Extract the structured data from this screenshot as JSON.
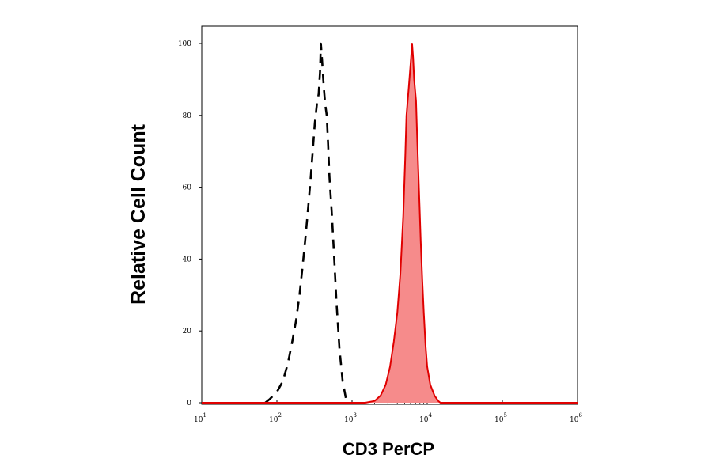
{
  "chart_data": {
    "type": "area",
    "xlabel": "CD3 PerCP",
    "ylabel": "Relative Cell Count",
    "x_scale": "log",
    "xlim": [
      10,
      1000000
    ],
    "ylim": [
      0,
      105
    ],
    "grid": false,
    "y_ticks": [
      {
        "value": 0,
        "label": "0"
      },
      {
        "value": 20,
        "label": "20"
      },
      {
        "value": 40,
        "label": "40"
      },
      {
        "value": 60,
        "label": "60"
      },
      {
        "value": 80,
        "label": "80"
      },
      {
        "value": 100,
        "label": "100"
      }
    ],
    "x_ticks": [
      {
        "value": 10,
        "base": "10",
        "exp": "1"
      },
      {
        "value": 100,
        "base": "10",
        "exp": "2"
      },
      {
        "value": 1000,
        "base": "10",
        "exp": "3"
      },
      {
        "value": 10000,
        "base": "10",
        "exp": "4"
      },
      {
        "value": 100000,
        "base": "10",
        "exp": "5"
      },
      {
        "value": 1000000,
        "base": "10",
        "exp": "6"
      }
    ],
    "series": [
      {
        "style": "dashed",
        "color": "#000000",
        "points": [
          [
            70,
            0
          ],
          [
            80,
            1
          ],
          [
            100,
            3
          ],
          [
            120,
            6
          ],
          [
            140,
            11
          ],
          [
            160,
            17
          ],
          [
            180,
            23
          ],
          [
            200,
            30
          ],
          [
            220,
            38
          ],
          [
            240,
            46
          ],
          [
            260,
            54
          ],
          [
            280,
            62
          ],
          [
            300,
            70
          ],
          [
            320,
            78
          ],
          [
            340,
            83
          ],
          [
            360,
            86
          ],
          [
            375,
            92
          ],
          [
            385,
            100
          ],
          [
            400,
            95
          ],
          [
            420,
            88
          ],
          [
            440,
            83
          ],
          [
            460,
            80
          ],
          [
            480,
            72
          ],
          [
            500,
            63
          ],
          [
            540,
            52
          ],
          [
            580,
            40
          ],
          [
            620,
            28
          ],
          [
            680,
            15
          ],
          [
            750,
            6
          ],
          [
            850,
            0
          ]
        ]
      },
      {
        "style": "filled",
        "color": "#e00000",
        "fill": "#f68b8b",
        "points": [
          [
            10,
            0
          ],
          [
            1500,
            0
          ],
          [
            2000,
            0.5
          ],
          [
            2400,
            2
          ],
          [
            2800,
            5
          ],
          [
            3200,
            10
          ],
          [
            3600,
            17
          ],
          [
            4000,
            25
          ],
          [
            4400,
            36
          ],
          [
            4800,
            52
          ],
          [
            5100,
            68
          ],
          [
            5300,
            80
          ],
          [
            5500,
            84
          ],
          [
            5700,
            88
          ],
          [
            5900,
            92
          ],
          [
            6100,
            96
          ],
          [
            6300,
            100
          ],
          [
            6500,
            96
          ],
          [
            6700,
            90
          ],
          [
            6900,
            87
          ],
          [
            7100,
            84
          ],
          [
            7300,
            76
          ],
          [
            7600,
            65
          ],
          [
            7900,
            55
          ],
          [
            8200,
            45
          ],
          [
            8600,
            34
          ],
          [
            9000,
            25
          ],
          [
            9500,
            16
          ],
          [
            10000,
            10
          ],
          [
            11000,
            5
          ],
          [
            12500,
            2
          ],
          [
            14000,
            0.5
          ],
          [
            15000,
            0
          ],
          [
            1000000,
            0
          ]
        ]
      }
    ]
  }
}
